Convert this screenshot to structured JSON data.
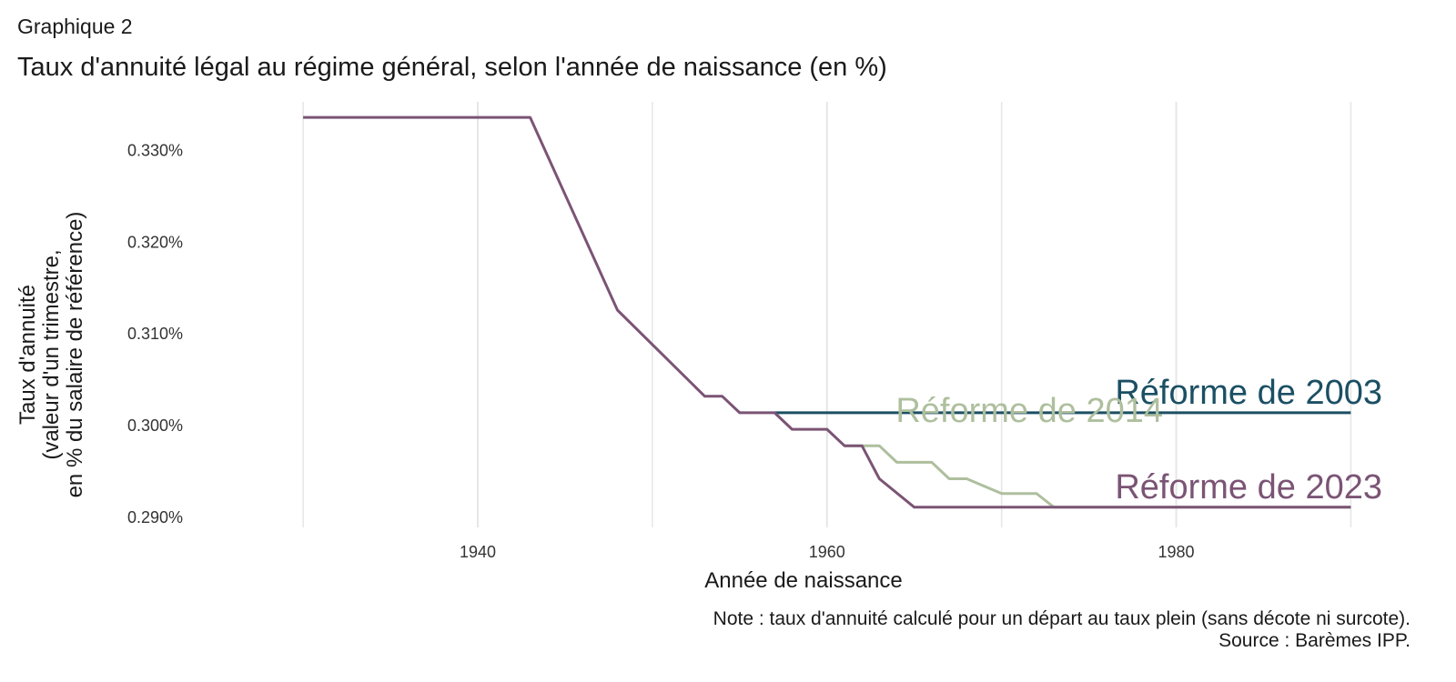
{
  "header": {
    "graph_label": "Graphique 2",
    "title": "Taux d'annuité légal au régime général, selon l'année de naissance (en %)"
  },
  "footer": {
    "note": "Note : taux d'annuité calculé pour un départ au taux plein (sans décote ni surcote).",
    "source": "Source : Barèmes IPP."
  },
  "chart_data": {
    "type": "line",
    "xlabel": "Année de naissance",
    "ylabel_lines": [
      "Taux d'annuité",
      "(valeur d'un trimestre,",
      "en % du salaire de référence)"
    ],
    "xlim": [
      1924,
      1993
    ],
    "ylim": [
      0.2888,
      0.3352
    ],
    "x_ticks": [
      1940,
      1960,
      1980
    ],
    "y_ticks": [
      0.29,
      0.3,
      0.31,
      0.32,
      0.33
    ],
    "y_tick_labels": [
      "0.290%",
      "0.300%",
      "0.310%",
      "0.320%",
      "0.330%"
    ],
    "grid": "vertical",
    "legend": "direct labels at right end of each line",
    "series": [
      {
        "name": "Réforme de 2003",
        "color": "#1b4f63",
        "x": [
          1957,
          1990
        ],
        "y": [
          0.3013,
          0.3013
        ]
      },
      {
        "name": "Réforme de 2014",
        "color": "#aebf9e",
        "x": [
          1961,
          1963,
          1964,
          1966,
          1967,
          1968,
          1970,
          1972,
          1973,
          1990
        ],
        "y": [
          0.2977,
          0.2977,
          0.2959,
          0.2959,
          0.2941,
          0.2941,
          0.2925,
          0.2925,
          0.291,
          0.291
        ]
      },
      {
        "name": "Réforme de 2023",
        "color": "#7b5475",
        "x": [
          1930,
          1943,
          1948,
          1953,
          1954,
          1955,
          1957,
          1958,
          1960,
          1961,
          1962,
          1963,
          1965,
          1990
        ],
        "y": [
          0.3335,
          0.3335,
          0.3125,
          0.3031,
          0.3031,
          0.3013,
          0.3013,
          0.2995,
          0.2995,
          0.2977,
          0.2977,
          0.2941,
          0.291,
          0.291
        ]
      }
    ]
  }
}
